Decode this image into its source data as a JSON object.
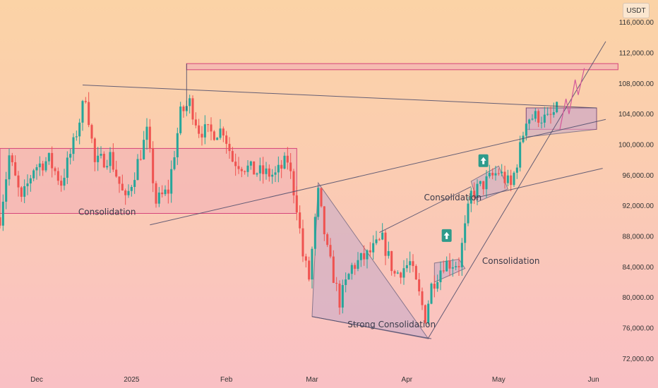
{
  "currency_label": "USDT",
  "colors": {
    "up": "#26a69a",
    "down": "#ef5350",
    "zone_fill": "#f0a8b8",
    "zone_stroke": "#d6457a",
    "pattern_fill": "#c5a9c9",
    "trendline": "#4a4a6a",
    "projection": "#d4589a",
    "arrow_badge": "#2e9b8b"
  },
  "chart_data": {
    "type": "candlestick",
    "ylim": [
      70000,
      118000
    ],
    "yticks": [
      72000,
      76000,
      80000,
      84000,
      88000,
      92000,
      96000,
      100000,
      104000,
      108000,
      112000,
      116000
    ],
    "ytick_labels": [
      "72,000.00",
      "76,000.00",
      "80,000.00",
      "84,000.00",
      "88,000.00",
      "92,000.00",
      "96,000.00",
      "100,000.00",
      "104,000.00",
      "108,000.00",
      "112,000.00",
      "116,000.00"
    ],
    "xticks": [
      {
        "date": "2024-12-01",
        "label": "Dec"
      },
      {
        "date": "2025-01-01",
        "label": "2025"
      },
      {
        "date": "2025-02-01",
        "label": "Feb"
      },
      {
        "date": "2025-03-01",
        "label": "Mar"
      },
      {
        "date": "2025-04-01",
        "label": "Apr"
      },
      {
        "date": "2025-05-01",
        "label": "May"
      },
      {
        "date": "2025-06-01",
        "label": "Jun"
      }
    ],
    "xlim": [
      "2024-11-19",
      "2025-06-08"
    ],
    "price_path": [
      [
        "2024-11-19",
        90500
      ],
      [
        "2024-11-22",
        98500
      ],
      [
        "2024-11-26",
        92500
      ],
      [
        "2024-11-30",
        97000
      ],
      [
        "2024-12-05",
        98000
      ],
      [
        "2024-12-09",
        95000
      ],
      [
        "2024-12-13",
        100000
      ],
      [
        "2024-12-17",
        106500
      ],
      [
        "2024-12-20",
        97500
      ],
      [
        "2024-12-25",
        98500
      ],
      [
        "2024-12-30",
        92500
      ],
      [
        "2025-01-06",
        101500
      ],
      [
        "2025-01-09",
        92500
      ],
      [
        "2025-01-13",
        94000
      ],
      [
        "2025-01-17",
        104000
      ],
      [
        "2025-01-20",
        105500
      ],
      [
        "2025-01-23",
        102000
      ],
      [
        "2025-01-27",
        101500
      ],
      [
        "2025-01-31",
        102000
      ],
      [
        "2025-02-03",
        98000
      ],
      [
        "2025-02-10",
        96500
      ],
      [
        "2025-02-17",
        96000
      ],
      [
        "2025-02-21",
        98000
      ],
      [
        "2025-02-24",
        92000
      ],
      [
        "2025-02-26",
        85500
      ],
      [
        "2025-02-28",
        82500
      ],
      [
        "2025-03-03",
        93500
      ],
      [
        "2025-03-06",
        86000
      ],
      [
        "2025-03-10",
        79500
      ],
      [
        "2025-03-14",
        84000
      ],
      [
        "2025-03-19",
        85500
      ],
      [
        "2025-03-24",
        87500
      ],
      [
        "2025-03-28",
        83000
      ],
      [
        "2025-04-02",
        84500
      ],
      [
        "2025-04-07",
        77500
      ],
      [
        "2025-04-09",
        81500
      ],
      [
        "2025-04-13",
        84500
      ],
      [
        "2025-04-18",
        84500
      ],
      [
        "2025-04-22",
        93500
      ],
      [
        "2025-04-25",
        94500
      ],
      [
        "2025-05-01",
        96500
      ],
      [
        "2025-05-05",
        94500
      ],
      [
        "2025-05-08",
        99500
      ],
      [
        "2025-05-10",
        103500
      ],
      [
        "2025-05-14",
        103700
      ],
      [
        "2025-05-17",
        103200
      ],
      [
        "2025-05-20",
        104500
      ]
    ],
    "projection_path": [
      [
        "2025-05-21",
        102000
      ],
      [
        "2025-05-23",
        106000
      ],
      [
        "2025-05-24",
        104000
      ],
      [
        "2025-05-26",
        108500
      ],
      [
        "2025-05-27",
        106500
      ],
      [
        "2025-05-29",
        110000
      ]
    ],
    "zones": [
      {
        "from": "2024-11-19",
        "to": "2025-02-24",
        "low": 91000,
        "high": 99500,
        "fill_opacity": 0.45
      },
      {
        "from": "2025-01-19",
        "to": "2025-06-09",
        "low": 109800,
        "high": 110600,
        "fill_opacity": 0.5
      },
      {
        "from": "2025-05-10",
        "to": "2025-06-02",
        "low": 102000,
        "high": 104800,
        "fill_opacity": 0.4
      }
    ],
    "patterns": [
      {
        "points": [
          [
            "2025-03-03",
            95000
          ],
          [
            "2025-04-08",
            74600
          ],
          [
            "2025-03-01",
            77500
          ]
        ]
      },
      {
        "points": [
          [
            "2025-04-10",
            84500
          ],
          [
            "2025-04-18",
            85000
          ],
          [
            "2025-04-20",
            83800
          ],
          [
            "2025-04-10",
            82000
          ]
        ]
      },
      {
        "points": [
          [
            "2025-04-22",
            95200
          ],
          [
            "2025-05-01",
            97200
          ],
          [
            "2025-05-04",
            94200
          ],
          [
            "2025-04-24",
            92500
          ]
        ]
      },
      {
        "points": [
          [
            "2025-05-10",
            104800
          ],
          [
            "2025-06-02",
            104800
          ],
          [
            "2025-06-02",
            102000
          ],
          [
            "2025-05-10",
            101000
          ]
        ]
      }
    ],
    "lines": [
      [
        [
          "2024-12-16",
          107800
        ],
        [
          "2025-06-02",
          104800
        ]
      ],
      [
        [
          "2025-01-07",
          89500
        ],
        [
          "2025-06-05",
          103300
        ]
      ],
      [
        [
          "2025-03-23",
          88500
        ],
        [
          "2025-04-22",
          94500
        ]
      ],
      [
        [
          "2025-04-23",
          93000
        ],
        [
          "2025-06-04",
          96900
        ]
      ],
      [
        [
          "2025-04-08",
          74700
        ],
        [
          "2025-06-05",
          113500
        ]
      ],
      [
        [
          "2025-03-01",
          77500
        ],
        [
          "2025-04-09",
          74600
        ]
      ],
      [
        [
          "2025-01-19",
          104500
        ],
        [
          "2025-01-19",
          110600
        ]
      ]
    ],
    "annotations": [
      {
        "text": "Consolidation",
        "date": "2024-12-24",
        "price": 90800
      },
      {
        "text": "Consolidation",
        "date": "2025-04-16",
        "price": 92700
      },
      {
        "text": "Consolidation",
        "date": "2025-05-05",
        "price": 84400
      },
      {
        "text": "Strong Consolidation",
        "date": "2025-03-27",
        "price": 76100
      }
    ],
    "up_markers": [
      {
        "date": "2025-04-14",
        "price": 88100
      },
      {
        "date": "2025-04-26",
        "price": 97900
      }
    ]
  }
}
